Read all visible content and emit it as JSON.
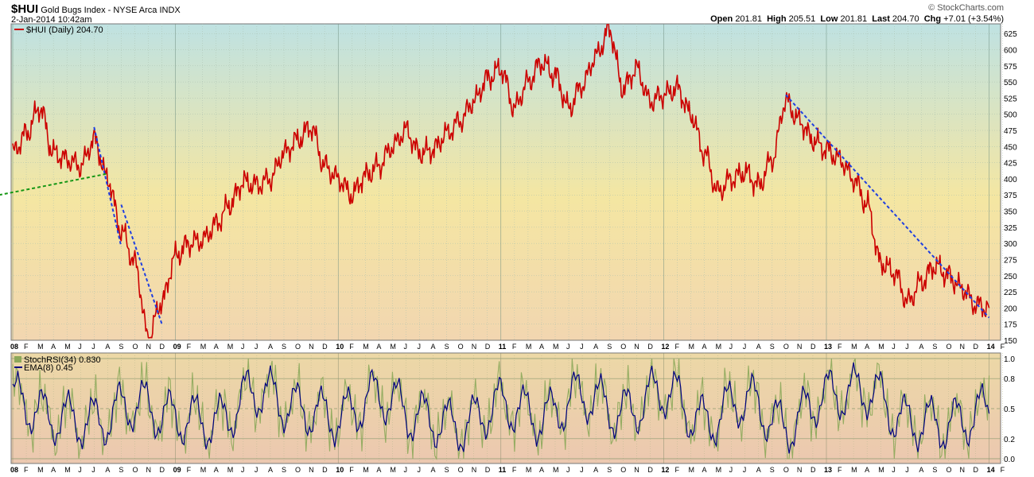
{
  "header": {
    "symbol": "$HUI",
    "name": "Gold Bugs Index - NYSE Arca",
    "exchange": "INDX",
    "datetime": "2-Jan-2014 10:42am",
    "brand": "© StockCharts.com",
    "quote": {
      "open_label": "Open",
      "open": "201.81",
      "high_label": "High",
      "high": "205.51",
      "low_label": "Low",
      "low": "201.81",
      "last_label": "Last",
      "last": "204.70",
      "chg_label": "Chg",
      "chg": "+7.01 (+3.54%)"
    }
  },
  "colors": {
    "price_line": "#cc0000",
    "trend_blue": "#1f3fe0",
    "trend_green": "#149614",
    "rsi_raw": "#8ca85a",
    "rsi_ema": "#000080",
    "grid": "#8fa890"
  },
  "chart_data": [
    {
      "type": "line",
      "title": "$HUI (Daily) 204.70",
      "series": [
        {
          "name": "$HUI (Daily) 204.70",
          "x": [
            "2008-01",
            "2008-02",
            "2008-03",
            "2008-04",
            "2008-05",
            "2008-06",
            "2008-07",
            "2008-08",
            "2008-09",
            "2008-10",
            "2008-11",
            "2008-12",
            "2009-01",
            "2009-02",
            "2009-03",
            "2009-04",
            "2009-05",
            "2009-06",
            "2009-07",
            "2009-08",
            "2009-09",
            "2009-10",
            "2009-11",
            "2009-12",
            "2010-01",
            "2010-02",
            "2010-03",
            "2010-04",
            "2010-05",
            "2010-06",
            "2010-07",
            "2010-08",
            "2010-09",
            "2010-10",
            "2010-11",
            "2010-12",
            "2011-01",
            "2011-02",
            "2011-03",
            "2011-04",
            "2011-05",
            "2011-06",
            "2011-07",
            "2011-08",
            "2011-09",
            "2011-10",
            "2011-11",
            "2011-12",
            "2012-01",
            "2012-02",
            "2012-03",
            "2012-04",
            "2012-05",
            "2012-06",
            "2012-07",
            "2012-08",
            "2012-09",
            "2012-10",
            "2012-11",
            "2012-12",
            "2013-01",
            "2013-02",
            "2013-03",
            "2013-04",
            "2013-05",
            "2013-06",
            "2013-07",
            "2013-08",
            "2013-09",
            "2013-10",
            "2013-11",
            "2013-12",
            "2014-01"
          ],
          "y": [
            440,
            470,
            510,
            440,
            430,
            420,
            460,
            400,
            320,
            270,
            155,
            210,
            280,
            300,
            305,
            330,
            360,
            395,
            390,
            400,
            440,
            460,
            480,
            420,
            400,
            375,
            405,
            420,
            450,
            475,
            440,
            445,
            470,
            490,
            520,
            555,
            570,
            510,
            550,
            580,
            560,
            510,
            545,
            590,
            630,
            540,
            570,
            520,
            530,
            540,
            500,
            440,
            380,
            400,
            410,
            390,
            430,
            520,
            490,
            460,
            445,
            430,
            400,
            360,
            270,
            255,
            210,
            240,
            265,
            250,
            230,
            205,
            200
          ]
        }
      ],
      "ylim": [
        150,
        640
      ],
      "y_ticks": [
        150,
        175,
        200,
        225,
        250,
        275,
        300,
        325,
        350,
        375,
        400,
        425,
        450,
        475,
        500,
        525,
        550,
        575,
        600,
        625
      ],
      "x_tick_labels": [
        "08",
        "F",
        "M",
        "A",
        "M",
        "J",
        "J",
        "A",
        "S",
        "O",
        "N",
        "D",
        "09",
        "F",
        "M",
        "A",
        "M",
        "J",
        "J",
        "A",
        "S",
        "O",
        "N",
        "D",
        "10",
        "F",
        "M",
        "A",
        "M",
        "J",
        "J",
        "A",
        "S",
        "O",
        "N",
        "D",
        "11",
        "F",
        "M",
        "A",
        "M",
        "J",
        "J",
        "A",
        "S",
        "O",
        "N",
        "D",
        "12",
        "F",
        "M",
        "A",
        "M",
        "J",
        "J",
        "A",
        "S",
        "O",
        "N",
        "D",
        "13",
        "F",
        "M",
        "A",
        "M",
        "J",
        "J",
        "A",
        "S",
        "O",
        "N",
        "D",
        "14",
        "F"
      ],
      "trend_lines": [
        {
          "color": "blue",
          "style": "dashed",
          "from": [
            "2008-07",
            480
          ],
          "to": [
            "2008-09",
            295
          ]
        },
        {
          "color": "blue",
          "style": "dashed",
          "from": [
            "2008-09",
            360
          ],
          "to": [
            "2008-12",
            175
          ]
        },
        {
          "color": "green",
          "style": "dashed",
          "from": [
            "2007-12",
            375
          ],
          "to": [
            "2008-08",
            408
          ]
        },
        {
          "color": "blue",
          "style": "dashed",
          "from": [
            "2012-10",
            530
          ],
          "to": [
            "2014-01",
            185
          ]
        }
      ]
    },
    {
      "type": "line",
      "series_labels": [
        "StochRSI(34) 0.830",
        "EMA(8) 0.45"
      ],
      "ylim": [
        0,
        1
      ],
      "y_ticks": [
        0.0,
        0.2,
        0.5,
        0.8,
        1.0
      ],
      "y_tick_labels": [
        "0.0",
        "0.2",
        "0.5",
        "0.8",
        "1.0"
      ],
      "series": [
        {
          "name": "EMA(8) 0.45",
          "x": [
            0,
            3,
            6,
            9,
            12,
            15,
            18,
            21,
            24,
            27,
            30,
            33,
            36,
            39,
            42,
            45,
            48,
            51,
            54,
            57,
            60,
            63,
            66,
            69,
            72
          ],
          "y": [
            0.7,
            0.3,
            0.2,
            0.6,
            0.3,
            0.2,
            0.9,
            0.5,
            0.3,
            0.8,
            0.3,
            0.1,
            0.6,
            0.3,
            0.8,
            0.4,
            0.9,
            0.2,
            0.7,
            0.1,
            0.8,
            0.9,
            0.2,
            0.15,
            0.45
          ]
        }
      ]
    }
  ]
}
